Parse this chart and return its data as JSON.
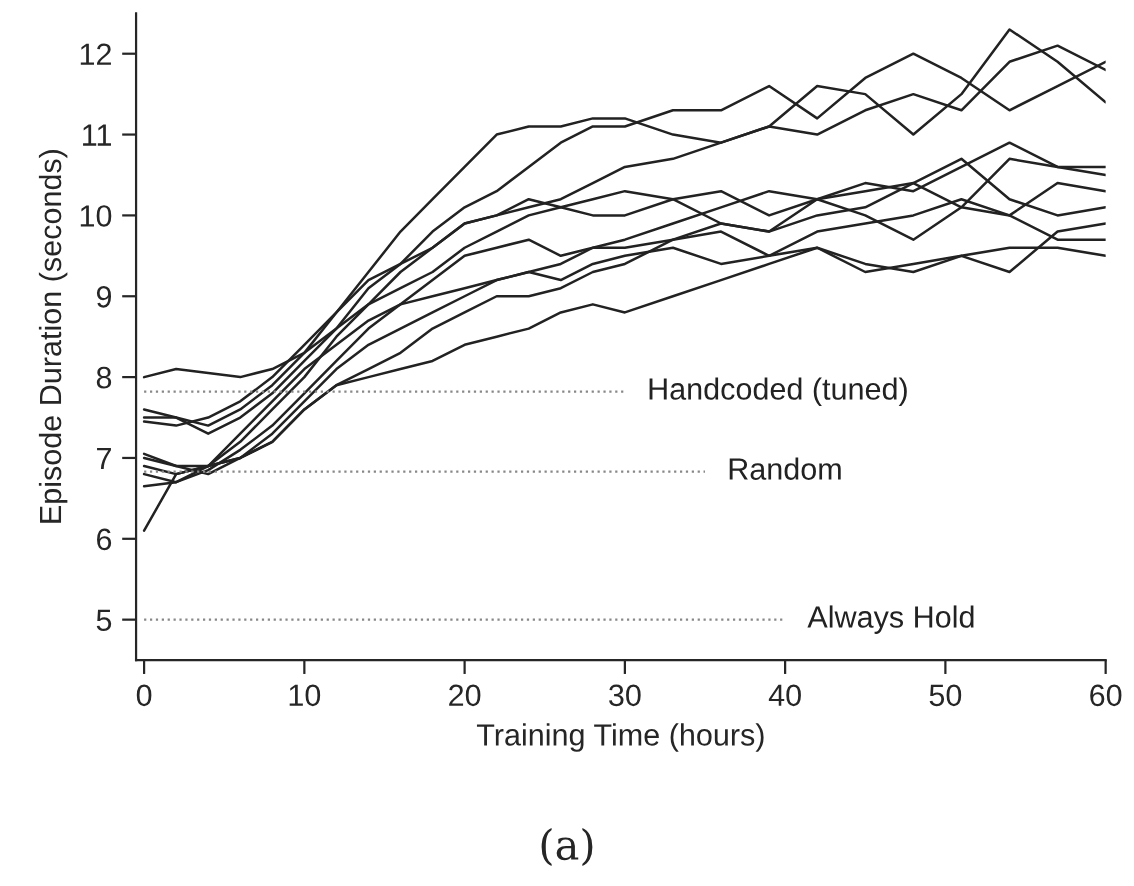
{
  "chart_data": {
    "type": "line",
    "xlabel": "Training Time (hours)",
    "ylabel": "Episode Duration (seconds)",
    "x": [
      0,
      2,
      4,
      6,
      8,
      10,
      12,
      14,
      16,
      18,
      20,
      22,
      24,
      26,
      28,
      30,
      33,
      36,
      39,
      42,
      45,
      48,
      51,
      54,
      57,
      60
    ],
    "xlim": [
      -0.5,
      60
    ],
    "ylim": [
      4.5,
      12.5
    ],
    "xticks": [
      0,
      10,
      20,
      30,
      40,
      50,
      60
    ],
    "yticks": [
      5,
      6,
      7,
      8,
      9,
      10,
      11,
      12
    ],
    "grid": false,
    "legend": false,
    "marker": "none",
    "line_style": "solid",
    "series": [
      {
        "color": "#222222",
        "values": [
          8.0,
          8.1,
          8.05,
          8.0,
          8.1,
          8.3,
          8.6,
          8.9,
          9.3,
          9.6,
          9.9,
          10.0,
          10.1,
          10.2,
          10.4,
          10.6,
          10.7,
          10.9,
          11.1,
          11.0,
          11.3,
          11.5,
          11.3,
          11.9,
          12.1,
          11.8
        ]
      },
      {
        "color": "#222222",
        "values": [
          7.5,
          7.5,
          7.4,
          7.6,
          7.9,
          8.3,
          8.8,
          9.3,
          9.8,
          10.2,
          10.6,
          11.0,
          11.1,
          11.1,
          11.2,
          11.2,
          11.0,
          10.9,
          11.1,
          11.6,
          11.5,
          11.0,
          11.5,
          12.3,
          11.9,
          11.4
        ]
      },
      {
        "color": "#222222",
        "values": [
          7.6,
          7.5,
          7.3,
          7.5,
          7.8,
          8.2,
          8.6,
          9.1,
          9.4,
          9.8,
          10.1,
          10.3,
          10.6,
          10.9,
          11.1,
          11.1,
          11.3,
          11.3,
          11.6,
          11.2,
          11.7,
          12.0,
          11.7,
          11.3,
          11.6,
          11.9
        ]
      },
      {
        "color": "#222222",
        "values": [
          7.45,
          7.4,
          7.5,
          7.7,
          8.0,
          8.4,
          8.8,
          9.2,
          9.4,
          9.6,
          9.9,
          10.0,
          10.2,
          10.1,
          10.2,
          10.3,
          10.2,
          10.3,
          10.0,
          10.2,
          10.3,
          10.4,
          10.1,
          10.0,
          10.4,
          10.3
        ]
      },
      {
        "color": "#222222",
        "values": [
          7.05,
          6.9,
          6.9,
          7.2,
          7.6,
          8.0,
          8.5,
          8.9,
          9.1,
          9.3,
          9.6,
          9.8,
          10.0,
          10.1,
          10.0,
          10.0,
          10.2,
          9.9,
          9.8,
          10.2,
          10.4,
          10.3,
          10.6,
          10.9,
          10.6,
          10.5
        ]
      },
      {
        "color": "#222222",
        "values": [
          6.9,
          6.8,
          6.9,
          7.3,
          7.7,
          8.1,
          8.4,
          8.7,
          8.9,
          9.2,
          9.5,
          9.6,
          9.7,
          9.5,
          9.6,
          9.7,
          9.9,
          10.1,
          10.3,
          10.2,
          10.0,
          9.7,
          10.1,
          10.7,
          10.6,
          10.6
        ]
      },
      {
        "color": "#222222",
        "values": [
          6.8,
          6.7,
          6.85,
          7.1,
          7.4,
          7.8,
          8.2,
          8.6,
          8.9,
          9.0,
          9.1,
          9.2,
          9.3,
          9.4,
          9.6,
          9.6,
          9.7,
          9.8,
          9.5,
          9.8,
          9.9,
          10.0,
          10.2,
          10.0,
          9.7,
          9.7
        ]
      },
      {
        "color": "#222222",
        "values": [
          6.65,
          6.7,
          6.9,
          7.0,
          7.3,
          7.7,
          8.1,
          8.4,
          8.6,
          8.8,
          9.0,
          9.2,
          9.3,
          9.2,
          9.4,
          9.5,
          9.6,
          9.4,
          9.5,
          9.6,
          9.3,
          9.4,
          9.5,
          9.3,
          9.8,
          9.9
        ]
      },
      {
        "color": "#222222",
        "values": [
          6.1,
          6.8,
          6.9,
          7.0,
          7.2,
          7.6,
          7.9,
          8.1,
          8.3,
          8.6,
          8.8,
          9.0,
          9.0,
          9.1,
          9.3,
          9.4,
          9.7,
          9.9,
          9.8,
          10.0,
          10.1,
          10.4,
          10.7,
          10.2,
          10.0,
          10.1
        ]
      },
      {
        "color": "#222222",
        "values": [
          7.0,
          6.9,
          6.8,
          7.0,
          7.2,
          7.6,
          7.9,
          8.0,
          8.1,
          8.2,
          8.4,
          8.5,
          8.6,
          8.8,
          8.9,
          8.8,
          9.0,
          9.2,
          9.4,
          9.6,
          9.4,
          9.3,
          9.5,
          9.6,
          9.6,
          9.5
        ]
      },
      {
        "name": "Handcoded (tuned)",
        "color": "#888888",
        "x": [
          0,
          30
        ],
        "values": [
          7.82,
          7.82
        ],
        "line_style": "dotted"
      },
      {
        "name": "Random",
        "color": "#888888",
        "x": [
          0,
          35
        ],
        "values": [
          6.83,
          6.83
        ],
        "line_style": "dotted"
      },
      {
        "name": "Always Hold",
        "color": "#888888",
        "x": [
          0,
          40
        ],
        "values": [
          5.0,
          5.0
        ],
        "line_style": "dotted"
      }
    ],
    "annotations": [
      "(a)"
    ]
  }
}
